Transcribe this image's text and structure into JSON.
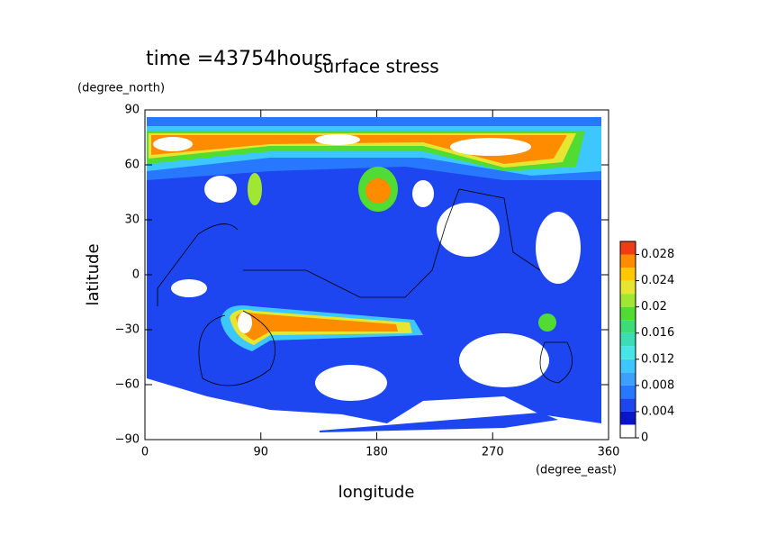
{
  "chart_data": {
    "type": "contour",
    "title": "surface stress",
    "subtitle": "time =43754hours",
    "xlabel": "longitude",
    "xunits": "(degree_east)",
    "ylabel": "latitude",
    "yunits": "(degree_north)",
    "xlim": [
      0,
      360
    ],
    "xticks": [
      0,
      90,
      180,
      270,
      360
    ],
    "ylim": [
      -90,
      90
    ],
    "yticks": [
      {
        "value": -90,
        "label": "−90"
      },
      {
        "value": -60,
        "label": "−60"
      },
      {
        "value": -30,
        "label": "−30"
      },
      0,
      30,
      60,
      90
    ],
    "colorbar": {
      "lim": [
        0,
        0.03
      ],
      "ticks": [
        0,
        0.004,
        0.008,
        0.012,
        0.016,
        0.02,
        0.024,
        0.028
      ],
      "colors": [
        "#ffffff",
        "#0a14c8",
        "#1e46f0",
        "#2878ff",
        "#3ca0ff",
        "#3cc8ff",
        "#46e6e6",
        "#3cdcb4",
        "#3cdc78",
        "#50dc32",
        "#a0e632",
        "#e6e632",
        "#ffc800",
        "#ff8c00",
        "#f03c14"
      ]
    }
  }
}
